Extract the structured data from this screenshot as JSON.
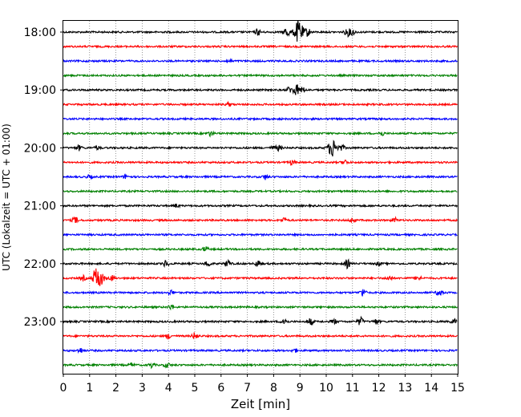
{
  "chart_data": {
    "type": "line",
    "title": "",
    "xlabel": "Zeit  [min]",
    "ylabel": "UTC (Lokalzeit = UTC + 01:00)",
    "xlim": [
      0,
      15
    ],
    "x_ticks": [
      "0",
      "1",
      "2",
      "3",
      "4",
      "5",
      "6",
      "7",
      "8",
      "9",
      "10",
      "11",
      "12",
      "13",
      "14",
      "15"
    ],
    "y_ticks": [
      "18:00",
      "19:00",
      "20:00",
      "21:00",
      "22:00",
      "23:00"
    ],
    "grid": "vertical dotted",
    "trace_interval_min": 15,
    "trace_colors": [
      "#000000",
      "#ff0000",
      "#0000ff",
      "#008000"
    ],
    "traces": [
      {
        "start": "18:00",
        "events": [
          [
            7.4,
            4
          ],
          [
            8.5,
            7
          ],
          [
            8.95,
            14
          ],
          [
            9.3,
            5
          ],
          [
            10.8,
            5
          ],
          [
            11.0,
            4
          ]
        ]
      },
      {
        "start": "18:15",
        "events": []
      },
      {
        "start": "18:30",
        "events": [
          [
            6.3,
            2
          ]
        ]
      },
      {
        "start": "18:45",
        "events": []
      },
      {
        "start": "19:00",
        "events": [
          [
            8.6,
            4
          ],
          [
            8.85,
            8
          ],
          [
            9.1,
            3
          ]
        ]
      },
      {
        "start": "19:15",
        "events": [
          [
            6.3,
            2
          ]
        ]
      },
      {
        "start": "19:30",
        "events": []
      },
      {
        "start": "19:45",
        "events": [
          [
            5.6,
            3
          ],
          [
            12.1,
            3
          ]
        ]
      },
      {
        "start": "20:00",
        "events": [
          [
            0.6,
            3
          ],
          [
            1.3,
            2
          ],
          [
            8.0,
            2
          ],
          [
            8.2,
            3
          ],
          [
            10.25,
            11
          ],
          [
            10.6,
            3
          ]
        ]
      },
      {
        "start": "20:15",
        "events": [
          [
            8.7,
            3
          ],
          [
            10.7,
            3
          ]
        ]
      },
      {
        "start": "20:30",
        "events": [
          [
            1.0,
            2
          ],
          [
            2.4,
            3
          ],
          [
            7.7,
            3
          ]
        ]
      },
      {
        "start": "20:45",
        "events": []
      },
      {
        "start": "21:00",
        "events": [
          [
            4.3,
            2
          ]
        ]
      },
      {
        "start": "21:15",
        "events": [
          [
            0.45,
            4
          ],
          [
            8.4,
            3
          ],
          [
            11.0,
            3
          ],
          [
            12.6,
            3
          ]
        ]
      },
      {
        "start": "21:30",
        "events": []
      },
      {
        "start": "21:45",
        "events": [
          [
            5.4,
            3
          ]
        ]
      },
      {
        "start": "22:00",
        "events": [
          [
            3.9,
            4
          ],
          [
            5.5,
            4
          ],
          [
            6.25,
            5
          ],
          [
            7.4,
            4
          ],
          [
            10.8,
            5
          ],
          [
            12.0,
            2
          ]
        ]
      },
      {
        "start": "22:15",
        "events": [
          [
            0.75,
            3
          ],
          [
            1.2,
            5
          ],
          [
            1.35,
            12
          ],
          [
            1.85,
            3
          ],
          [
            12.4,
            3
          ],
          [
            13.5,
            3
          ]
        ]
      },
      {
        "start": "22:30",
        "events": [
          [
            4.1,
            3
          ],
          [
            11.4,
            5
          ],
          [
            14.3,
            5
          ]
        ]
      },
      {
        "start": "22:45",
        "events": [
          [
            4.1,
            3
          ]
        ]
      },
      {
        "start": "23:00",
        "events": [
          [
            8.4,
            5
          ],
          [
            9.4,
            4
          ],
          [
            10.3,
            3
          ],
          [
            11.3,
            5
          ],
          [
            11.9,
            3
          ],
          [
            14.85,
            3
          ]
        ]
      },
      {
        "start": "23:15",
        "events": [
          [
            4.0,
            3
          ],
          [
            5.0,
            4
          ]
        ]
      },
      {
        "start": "23:30",
        "events": [
          [
            0.65,
            3
          ],
          [
            8.8,
            2
          ]
        ]
      },
      {
        "start": "23:45",
        "events": [
          [
            2.6,
            2
          ],
          [
            3.35,
            3
          ],
          [
            3.95,
            3
          ]
        ]
      }
    ]
  }
}
